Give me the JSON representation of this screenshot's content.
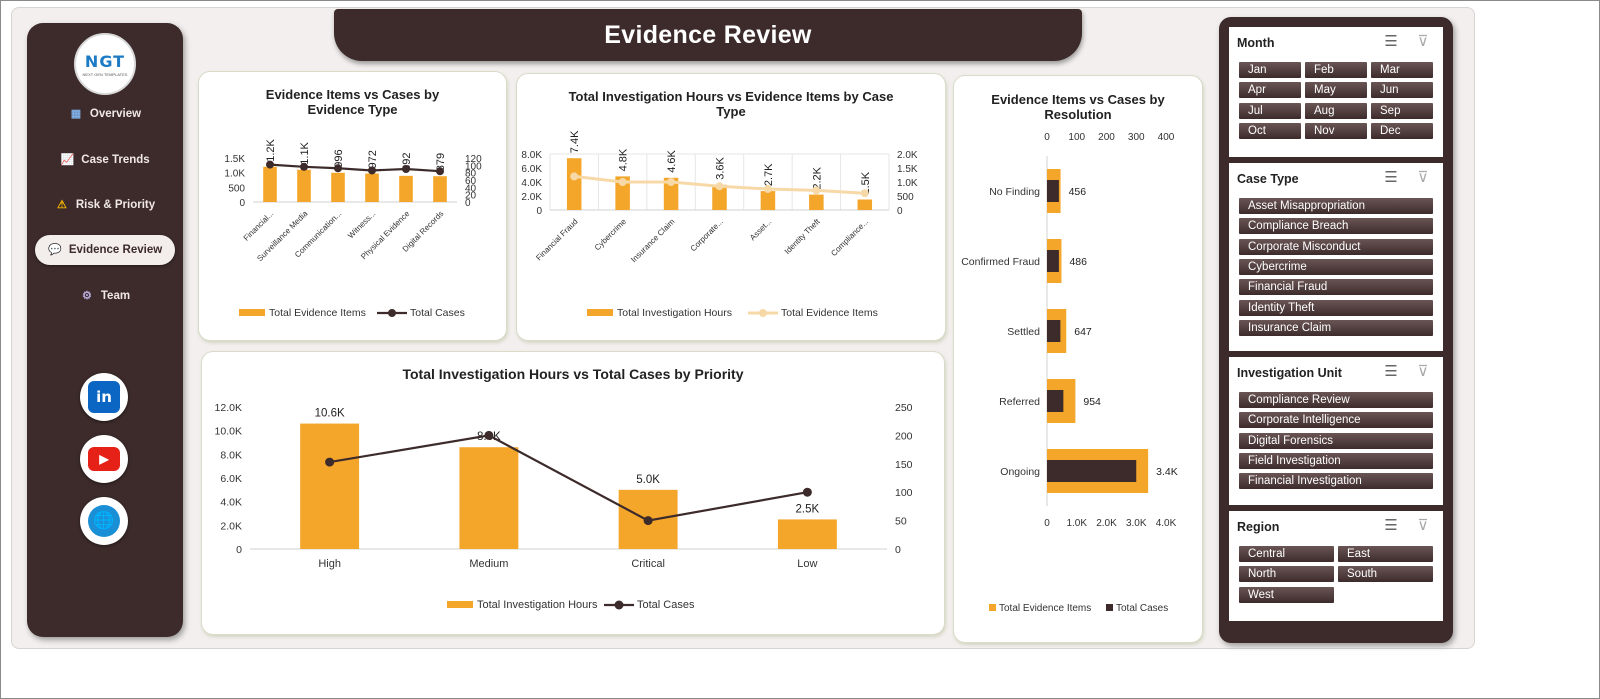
{
  "title": "Evidence Review",
  "logo": {
    "text": "NGT",
    "sub": "NEXT GEN TEMPLATES"
  },
  "nav": [
    {
      "label": "Overview",
      "icon": "bar-chart-icon",
      "glyph": "▦"
    },
    {
      "label": "Case Trends",
      "icon": "line-chart-icon",
      "glyph": "📈"
    },
    {
      "label": "Risk & Priority",
      "icon": "warning-icon",
      "glyph": "⚠"
    },
    {
      "label": "Evidence Review",
      "icon": "chat-bubble-icon",
      "glyph": "💬"
    },
    {
      "label": "Team",
      "icon": "gear-icon",
      "glyph": "⚙"
    }
  ],
  "social": [
    {
      "name": "linkedin-icon",
      "glyph": "in",
      "color": "#0a66c2"
    },
    {
      "name": "youtube-icon",
      "glyph": "▶",
      "color": "#e62117"
    },
    {
      "name": "globe-icon",
      "glyph": "🌐",
      "color": "#1a8fd6"
    }
  ],
  "colors": {
    "orange": "#f4a62a",
    "dark": "#3d2b2b",
    "light_orange": "#f7d9a7"
  },
  "slicers": [
    {
      "title": "Month",
      "items": [
        "Jan",
        "Feb",
        "Mar",
        "Apr",
        "May",
        "Jun",
        "Jul",
        "Aug",
        "Sep",
        "Oct",
        "Nov",
        "Dec"
      ],
      "columns": 3
    },
    {
      "title": "Case Type",
      "items": [
        "Asset Misappropriation",
        "Compliance Breach",
        "Corporate Misconduct",
        "Cybercrime",
        "Financial Fraud",
        "Identity Theft",
        "Insurance Claim"
      ],
      "columns": 1
    },
    {
      "title": "Investigation Unit",
      "items": [
        "Compliance Review",
        "Corporate Intelligence",
        "Digital Forensics",
        "Field Investigation",
        "Financial Investigation"
      ],
      "columns": 1
    },
    {
      "title": "Region",
      "items": [
        "Central",
        "East",
        "North",
        "South",
        "West"
      ],
      "columns": 2
    }
  ],
  "chart_data": [
    {
      "id": "evidence-by-type",
      "type": "bar",
      "title": "Evidence Items vs Cases by Evidence Type",
      "categories": [
        "Financial...",
        "Surveillance Media",
        "Communication...",
        "Witness...",
        "Physical Evidence",
        "Digital Records"
      ],
      "series": [
        {
          "name": "Total Evidence Items",
          "kind": "bar",
          "axis": "left",
          "values": [
            1200,
            1100,
            996,
            972,
            892,
            879
          ],
          "labels": [
            "1.2K",
            "1.1K",
            "996",
            "972",
            "892",
            "879"
          ]
        },
        {
          "name": "Total Cases",
          "kind": "line",
          "axis": "right",
          "values": [
            102,
            96,
            92,
            86,
            90,
            84
          ]
        }
      ],
      "left_axis": {
        "ticks": [
          "0",
          "500",
          "1.0K",
          "1.5K"
        ],
        "max": 1500
      },
      "right_axis": {
        "ticks": [
          "0",
          "20",
          "40",
          "60",
          "80",
          "100",
          "120"
        ],
        "max": 120
      },
      "legend": "bottom"
    },
    {
      "id": "hours-by-case-type",
      "type": "bar",
      "title": "Total Investigation Hours vs Evidence Items by Case Type",
      "categories": [
        "Financial Fraud",
        "Cybercrime",
        "Insurance Claim",
        "Corporate...",
        "Asset...",
        "Identity Theft",
        "Compliance..."
      ],
      "series": [
        {
          "name": "Total Investigation Hours",
          "kind": "bar",
          "axis": "left",
          "values": [
            7400,
            4800,
            4600,
            3600,
            2700,
            2200,
            1500
          ],
          "labels": [
            "7.4K",
            "4.8K",
            "4.6K",
            "3.6K",
            "2.7K",
            "2.2K",
            "1.5K"
          ]
        },
        {
          "name": "Total Evidence Items",
          "kind": "line",
          "axis": "right",
          "values": [
            1200,
            1000,
            1000,
            850,
            750,
            700,
            600
          ]
        }
      ],
      "left_axis": {
        "ticks": [
          "0",
          "2.0K",
          "4.0K",
          "6.0K",
          "8.0K"
        ],
        "max": 8000
      },
      "right_axis": {
        "ticks": [
          "0",
          "500",
          "1.0K",
          "1.5K",
          "2.0K"
        ],
        "max": 2000
      },
      "legend": "bottom"
    },
    {
      "id": "evidence-by-resolution",
      "type": "bar",
      "orientation": "horizontal",
      "title": "Evidence Items vs Cases by Resolution",
      "categories": [
        "No Finding",
        "Confirmed Fraud",
        "Settled",
        "Referred",
        "Ongoing"
      ],
      "series": [
        {
          "name": "Total Evidence Items",
          "kind": "bar",
          "axis": "bottom",
          "values": [
            456,
            486,
            647,
            954,
            3400
          ],
          "labels": [
            "456",
            "486",
            "647",
            "954",
            "3.4K"
          ]
        },
        {
          "name": "Total Cases",
          "kind": "bar",
          "axis": "top",
          "values": [
            40,
            40,
            45,
            55,
            300
          ]
        }
      ],
      "top_axis": {
        "ticks": [
          "0",
          "100",
          "200",
          "300",
          "400"
        ],
        "max": 400
      },
      "bottom_axis": {
        "ticks": [
          "0",
          "1.0K",
          "2.0K",
          "3.0K",
          "4.0K"
        ],
        "max": 4000
      },
      "legend": "bottom"
    },
    {
      "id": "hours-by-priority",
      "type": "bar",
      "title": "Total Investigation Hours vs Total Cases by Priority",
      "categories": [
        "High",
        "Medium",
        "Critical",
        "Low"
      ],
      "series": [
        {
          "name": "Total Investigation Hours",
          "kind": "bar",
          "axis": "left",
          "values": [
            10600,
            8600,
            5000,
            2500
          ],
          "labels": [
            "10.6K",
            "8.6K",
            "5.0K",
            "2.5K"
          ]
        },
        {
          "name": "Total Cases",
          "kind": "line",
          "axis": "right",
          "values": [
            153,
            200,
            50,
            100
          ]
        }
      ],
      "left_axis": {
        "ticks": [
          "0",
          "2.0K",
          "4.0K",
          "6.0K",
          "8.0K",
          "10.0K",
          "12.0K"
        ],
        "max": 12000
      },
      "right_axis": {
        "ticks": [
          "0",
          "50",
          "100",
          "150",
          "200",
          "250"
        ],
        "max": 250
      },
      "legend": "bottom"
    }
  ]
}
